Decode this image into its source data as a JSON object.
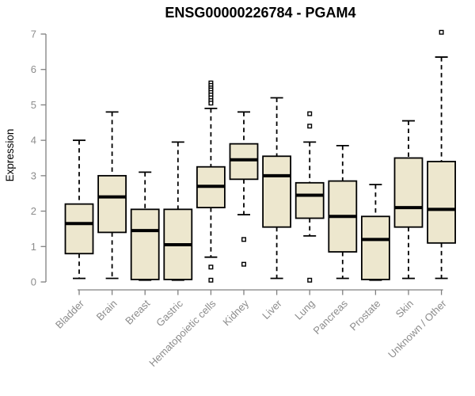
{
  "chart_data": {
    "type": "box",
    "title": "ENSG00000226784 - PGAM4",
    "ylabel": "Expression",
    "xlabel": "",
    "ylim": [
      0,
      7
    ],
    "yticks": [
      0,
      1,
      2,
      3,
      4,
      5,
      6,
      7
    ],
    "grid": false,
    "legend_position": "none",
    "x_label_rotation_deg": 45,
    "categories": [
      "Bladder",
      "Brain",
      "Breast",
      "Gastric",
      "Hematopoietic cells",
      "Kidney",
      "Liver",
      "Lung",
      "Pancreas",
      "Prostate",
      "Skin",
      "Unknown / Other"
    ],
    "series": [
      {
        "category": "Bladder",
        "whisker_low": 0.1,
        "q1": 0.8,
        "median": 1.65,
        "q3": 2.2,
        "whisker_high": 4.0,
        "outliers": []
      },
      {
        "category": "Brain",
        "whisker_low": 0.1,
        "q1": 1.4,
        "median": 2.4,
        "q3": 3.0,
        "whisker_high": 4.8,
        "outliers": []
      },
      {
        "category": "Breast",
        "whisker_low": 0.05,
        "q1": 0.07,
        "median": 1.45,
        "q3": 2.05,
        "whisker_high": 3.1,
        "outliers": []
      },
      {
        "category": "Gastric",
        "whisker_low": 0.05,
        "q1": 0.07,
        "median": 1.05,
        "q3": 2.05,
        "whisker_high": 3.95,
        "outliers": []
      },
      {
        "category": "Hematopoietic cells",
        "whisker_low": 0.7,
        "q1": 2.1,
        "median": 2.7,
        "q3": 3.25,
        "whisker_high": 4.9,
        "outliers": [
          5.62,
          5.55,
          5.48,
          5.42,
          5.35,
          5.28,
          5.2,
          5.12,
          5.05,
          0.42,
          0.05
        ]
      },
      {
        "category": "Kidney",
        "whisker_low": 1.9,
        "q1": 2.9,
        "median": 3.45,
        "q3": 3.9,
        "whisker_high": 4.8,
        "outliers": [
          1.2,
          0.5
        ]
      },
      {
        "category": "Liver",
        "whisker_low": 0.1,
        "q1": 1.55,
        "median": 3.0,
        "q3": 3.55,
        "whisker_high": 5.2,
        "outliers": []
      },
      {
        "category": "Lung",
        "whisker_low": 1.3,
        "q1": 1.8,
        "median": 2.45,
        "q3": 2.8,
        "whisker_high": 3.95,
        "outliers": [
          4.75,
          4.4,
          0.05
        ]
      },
      {
        "category": "Pancreas",
        "whisker_low": 0.1,
        "q1": 0.85,
        "median": 1.85,
        "q3": 2.85,
        "whisker_high": 3.85,
        "outliers": []
      },
      {
        "category": "Prostate",
        "whisker_low": 0.05,
        "q1": 0.07,
        "median": 1.2,
        "q3": 1.85,
        "whisker_high": 2.75,
        "outliers": []
      },
      {
        "category": "Skin",
        "whisker_low": 0.1,
        "q1": 1.55,
        "median": 2.1,
        "q3": 3.5,
        "whisker_high": 4.55,
        "outliers": []
      },
      {
        "category": "Unknown / Other",
        "whisker_low": 0.1,
        "q1": 1.1,
        "median": 2.05,
        "q3": 3.4,
        "whisker_high": 6.35,
        "outliers": [
          7.05
        ]
      }
    ],
    "colors": {
      "box_fill": "#EDE7CE",
      "box_border": "#000000",
      "median": "#000000",
      "whisker": "#000000",
      "outlier_fill": "#FFFFFF",
      "outlier_border": "#000000",
      "axis": "#808080",
      "tick_label": "#8C8C8C",
      "title": "#000000",
      "background": "#FFFFFF"
    },
    "style": {
      "whisker_linetype": "dashed",
      "outlier_symbol": "open-square"
    }
  }
}
